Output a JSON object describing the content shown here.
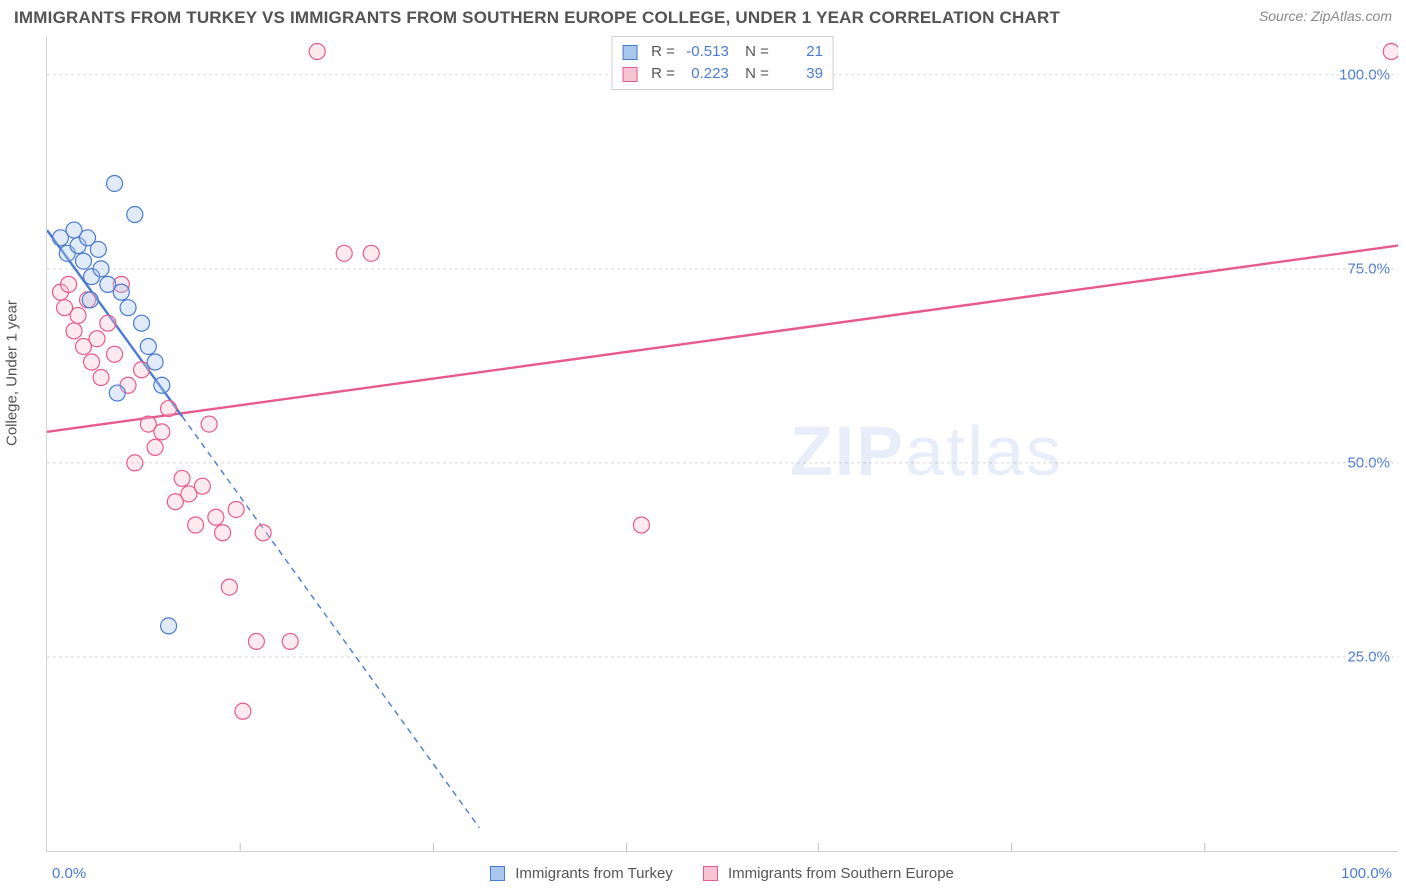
{
  "title": "IMMIGRANTS FROM TURKEY VS IMMIGRANTS FROM SOUTHERN EUROPE COLLEGE, UNDER 1 YEAR CORRELATION CHART",
  "source": "Source: ZipAtlas.com",
  "watermark_bold": "ZIP",
  "watermark_rest": "atlas",
  "y_axis_label": "College, Under 1 year",
  "chart": {
    "type": "scatter",
    "xlim": [
      0,
      100
    ],
    "ylim": [
      0,
      105
    ],
    "x_ticks": [
      0,
      100
    ],
    "x_tick_labels": [
      "0.0%",
      "100.0%"
    ],
    "x_minor_ticks": [
      14.3,
      28.6,
      42.9,
      57.1,
      71.4,
      85.7
    ],
    "y_ticks": [
      25,
      50,
      75,
      100
    ],
    "y_tick_labels": [
      "25.0%",
      "50.0%",
      "75.0%",
      "100.0%"
    ],
    "grid_color": "#d8d8d8",
    "grid_dash": "3,3",
    "background_color": "#ffffff",
    "marker_radius": 8,
    "marker_fill_opacity": 0.35,
    "marker_stroke_width": 1.2,
    "line_width": 2.4,
    "dash_pattern": "6,5"
  },
  "series_a": {
    "label": "Immigrants from Turkey",
    "fill": "#a9c6ec",
    "stroke": "#4a7bd0",
    "R": "-0.513",
    "N": "21",
    "points": [
      [
        1.0,
        79
      ],
      [
        1.5,
        77
      ],
      [
        2.0,
        80
      ],
      [
        2.3,
        78
      ],
      [
        2.7,
        76
      ],
      [
        3.0,
        79
      ],
      [
        3.3,
        74
      ],
      [
        3.8,
        77.5
      ],
      [
        4.0,
        75
      ],
      [
        4.5,
        73
      ],
      [
        5.0,
        86
      ],
      [
        5.5,
        72
      ],
      [
        6.0,
        70
      ],
      [
        6.5,
        82
      ],
      [
        7.0,
        68
      ],
      [
        7.5,
        65
      ],
      [
        8.0,
        63
      ],
      [
        8.5,
        60
      ],
      [
        5.2,
        59
      ],
      [
        9.0,
        29
      ],
      [
        3.2,
        71
      ]
    ],
    "trend": {
      "x1": 0,
      "y1": 80,
      "x2": 10,
      "y2": 56,
      "extend_x2": 32,
      "extend_y2": 3
    }
  },
  "series_b": {
    "label": "Immigrants from Southern Europe",
    "fill": "#f6c4d2",
    "stroke": "#e95a8c",
    "R": "0.223",
    "N": "39",
    "points": [
      [
        1.0,
        72
      ],
      [
        1.3,
        70
      ],
      [
        1.6,
        73
      ],
      [
        2.0,
        67
      ],
      [
        2.3,
        69
      ],
      [
        2.7,
        65
      ],
      [
        3.0,
        71
      ],
      [
        3.3,
        63
      ],
      [
        3.7,
        66
      ],
      [
        4.0,
        61
      ],
      [
        4.5,
        68
      ],
      [
        5.0,
        64
      ],
      [
        5.5,
        73
      ],
      [
        6.0,
        60
      ],
      [
        6.5,
        50
      ],
      [
        7.0,
        62
      ],
      [
        7.5,
        55
      ],
      [
        8.0,
        52
      ],
      [
        8.5,
        54
      ],
      [
        9.0,
        57
      ],
      [
        9.5,
        45
      ],
      [
        10.0,
        48
      ],
      [
        10.5,
        46
      ],
      [
        11.0,
        42
      ],
      [
        11.5,
        47
      ],
      [
        12.0,
        55
      ],
      [
        12.5,
        43
      ],
      [
        13.0,
        41
      ],
      [
        13.5,
        34
      ],
      [
        14.0,
        44
      ],
      [
        15.5,
        27
      ],
      [
        16.0,
        41
      ],
      [
        14.5,
        18
      ],
      [
        18.0,
        27
      ],
      [
        20.0,
        103
      ],
      [
        22.0,
        77
      ],
      [
        24.0,
        77
      ],
      [
        44.0,
        42
      ],
      [
        99.5,
        103
      ]
    ],
    "trend": {
      "x1": 0,
      "y1": 54,
      "x2": 100,
      "y2": 78
    }
  }
}
